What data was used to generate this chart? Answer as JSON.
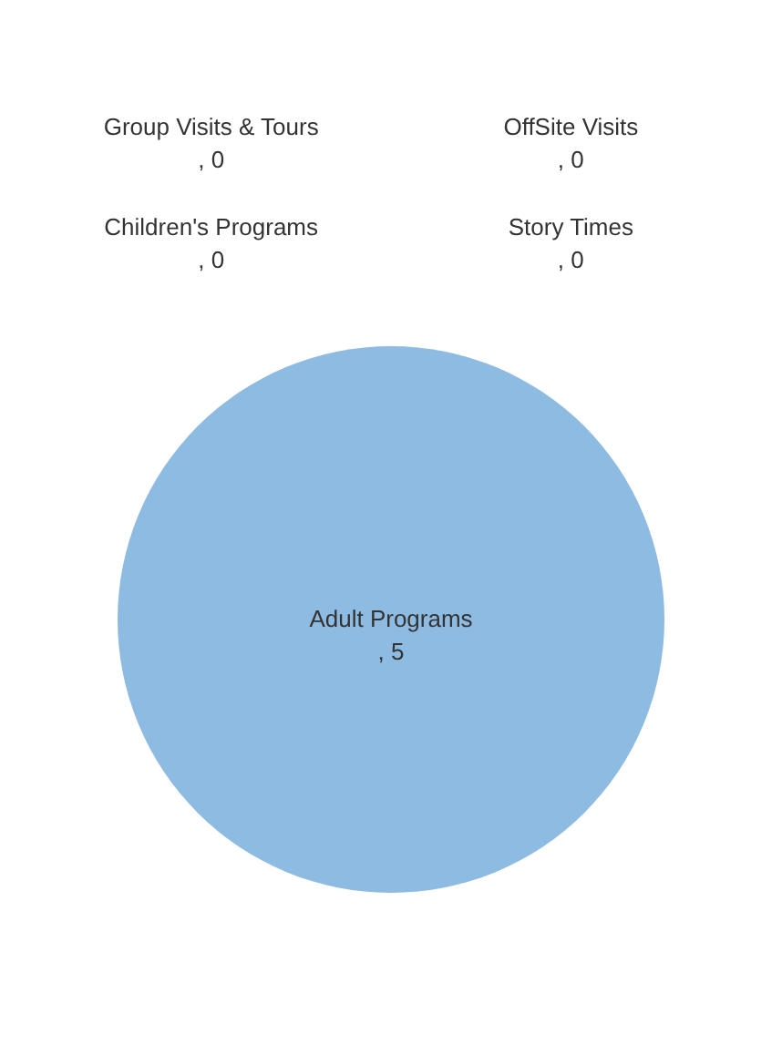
{
  "chart_data": {
    "type": "pie",
    "categories": [
      "Adult Programs",
      "Group Visits & Tours",
      "Children's Programs",
      "OffSite Visits",
      "Story Times"
    ],
    "values": [
      5,
      0,
      0,
      0,
      0
    ],
    "colors": [
      "#8dbbe2",
      "#ed7d31",
      "#a5a5a5",
      "#ffc000",
      "#4472c4"
    ],
    "value_labels": [
      ", 5",
      ", 0",
      ", 0",
      ", 0",
      ", 0"
    ]
  }
}
